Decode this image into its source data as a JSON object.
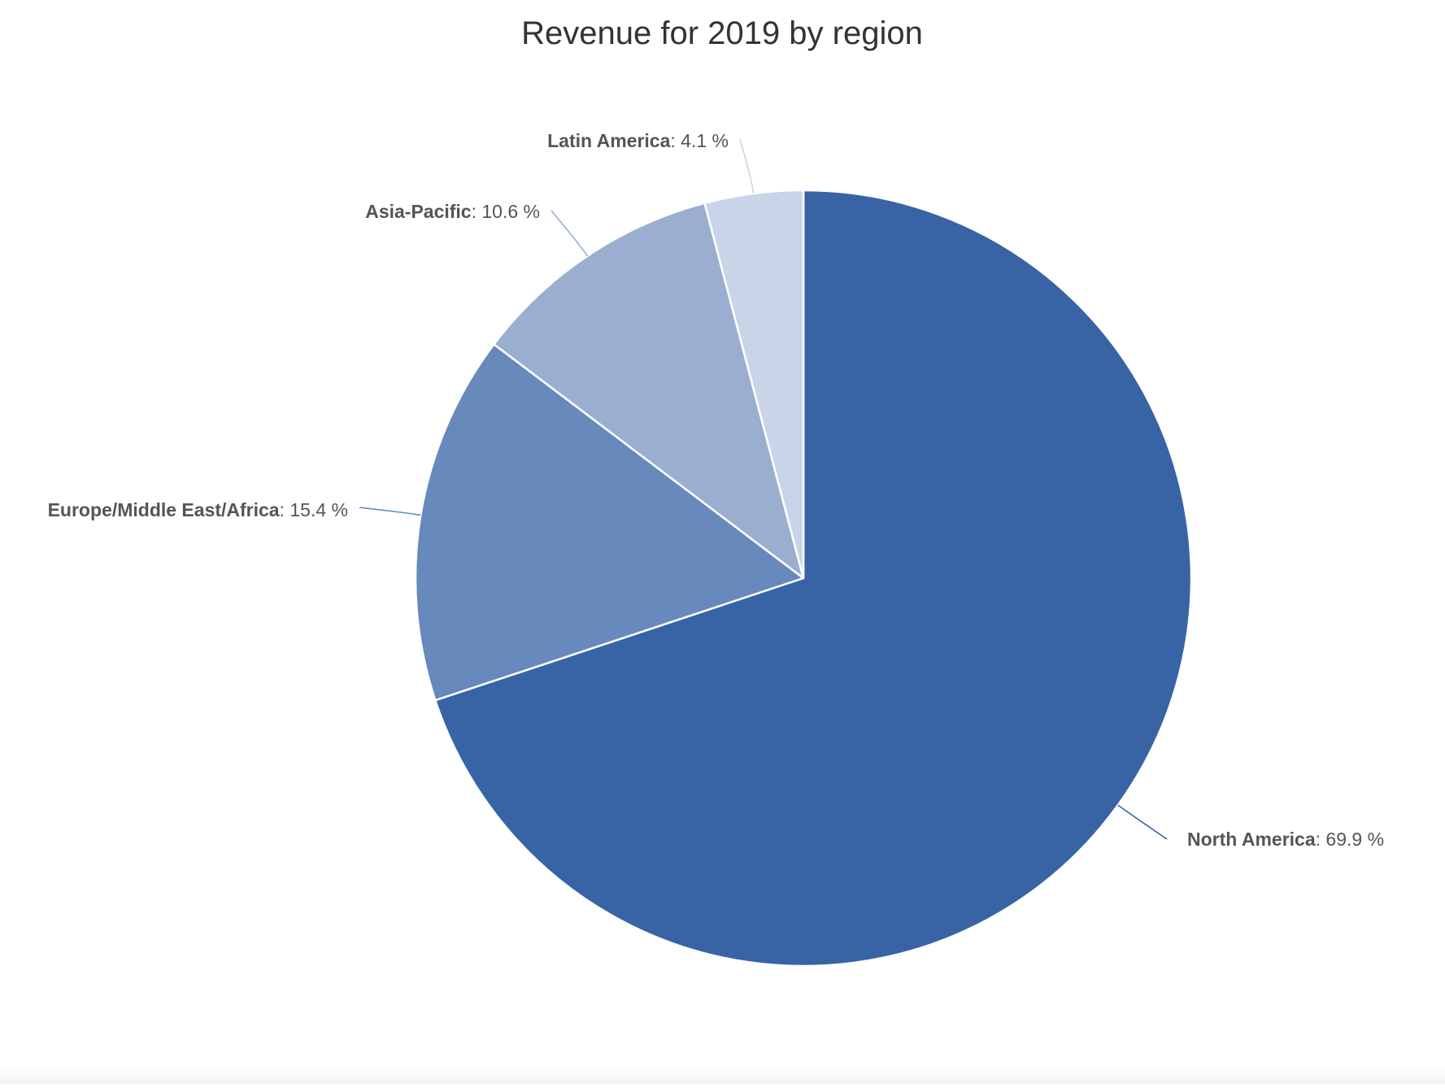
{
  "chart_data": {
    "type": "pie",
    "title": "Revenue for 2019 by region",
    "unit": "%",
    "colors": {
      "slice_border": "#ffffff",
      "label_text": "#555555",
      "title_text": "#333333"
    },
    "slices": [
      {
        "label": "North America",
        "value": 69.9,
        "value_text": ": 69.9 %",
        "color": "#3864a6"
      },
      {
        "label": "Europe/Middle East/Africa",
        "value": 15.4,
        "value_text": ": 15.4 %",
        "color": "#6789bc"
      },
      {
        "label": "Asia-Pacific",
        "value": 10.6,
        "value_text": ": 10.6 %",
        "color": "#9aafd0"
      },
      {
        "label": "Latin America",
        "value": 4.1,
        "value_text": ": 4.1 %",
        "color": "#c8d5e8"
      }
    ]
  }
}
